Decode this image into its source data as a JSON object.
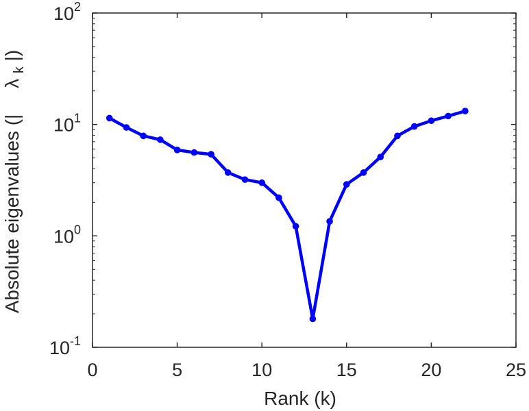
{
  "chart_data": {
    "type": "line",
    "xlabel": "Rank (k)",
    "ylabel": "Absolute eigenvalues (|",
    "ylabel_symbol": "λ",
    "ylabel_subscript": "k",
    "ylabel_tail": "|)",
    "xlim": [
      0,
      25
    ],
    "ylim": [
      0.1,
      100
    ],
    "yscale": "log",
    "grid": false,
    "x_ticks": [
      0,
      5,
      10,
      15,
      20,
      25
    ],
    "x_tick_labels": [
      "0",
      "5",
      "10",
      "15",
      "20",
      "25"
    ],
    "y_ticks": [
      0.1,
      1,
      10,
      100
    ],
    "y_tick_labels": [
      {
        "base": "10",
        "exp": "-1"
      },
      {
        "base": "10",
        "exp": "0"
      },
      {
        "base": "10",
        "exp": "1"
      },
      {
        "base": "10",
        "exp": "2"
      }
    ],
    "series": [
      {
        "color": "#0000ff",
        "x": [
          1,
          2,
          3,
          4,
          5,
          6,
          7,
          8,
          9,
          10,
          11,
          12,
          13,
          14,
          15,
          16,
          17,
          18,
          19,
          20,
          21,
          22
        ],
        "y": [
          11.4,
          9.4,
          7.9,
          7.3,
          5.9,
          5.6,
          5.4,
          3.7,
          3.2,
          3.0,
          2.2,
          1.22,
          0.18,
          1.35,
          2.9,
          3.7,
          5.1,
          7.9,
          9.6,
          10.8,
          11.9,
          13.2
        ]
      }
    ]
  }
}
